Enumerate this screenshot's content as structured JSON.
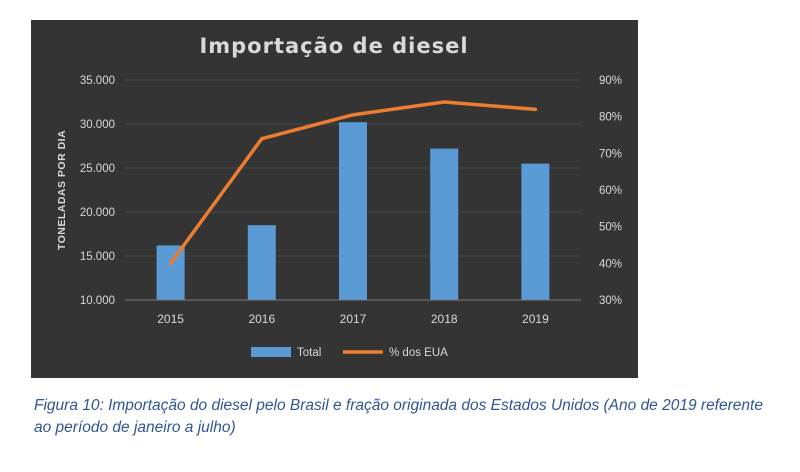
{
  "chart_data": {
    "type": "bar+line",
    "title": "Importação  de diesel",
    "ylabel": "TONELADAS POR DIA",
    "categories": [
      "2015",
      "2016",
      "2017",
      "2018",
      "2019"
    ],
    "series": [
      {
        "name": "Total",
        "type": "bar",
        "axis": "left",
        "values": [
          16200,
          18500,
          30200,
          27200,
          25500
        ]
      },
      {
        "name": "% dos EUA",
        "type": "line",
        "axis": "right",
        "values": [
          40,
          74,
          80.5,
          84,
          82
        ]
      }
    ],
    "ylim": [
      10000,
      35000
    ],
    "y_ticks": [
      "10.000",
      "15.000",
      "20.000",
      "25.000",
      "30.000",
      "35.000"
    ],
    "y2lim": [
      30,
      90
    ],
    "y2_ticks": [
      "30%",
      "40%",
      "50%",
      "60%",
      "70%",
      "80%",
      "90%"
    ],
    "grid": true,
    "legend_position": "bottom",
    "colors": {
      "background": "#343434",
      "bar": "#5b9bd5",
      "line": "#ed7d31",
      "text": "#d9d9d9",
      "grid": "#4a4a4a"
    }
  },
  "caption": "Figura 10: Importação do diesel pelo Brasil e fração originada dos Estados Unidos (Ano de 2019 referente ao período de janeiro a julho)"
}
